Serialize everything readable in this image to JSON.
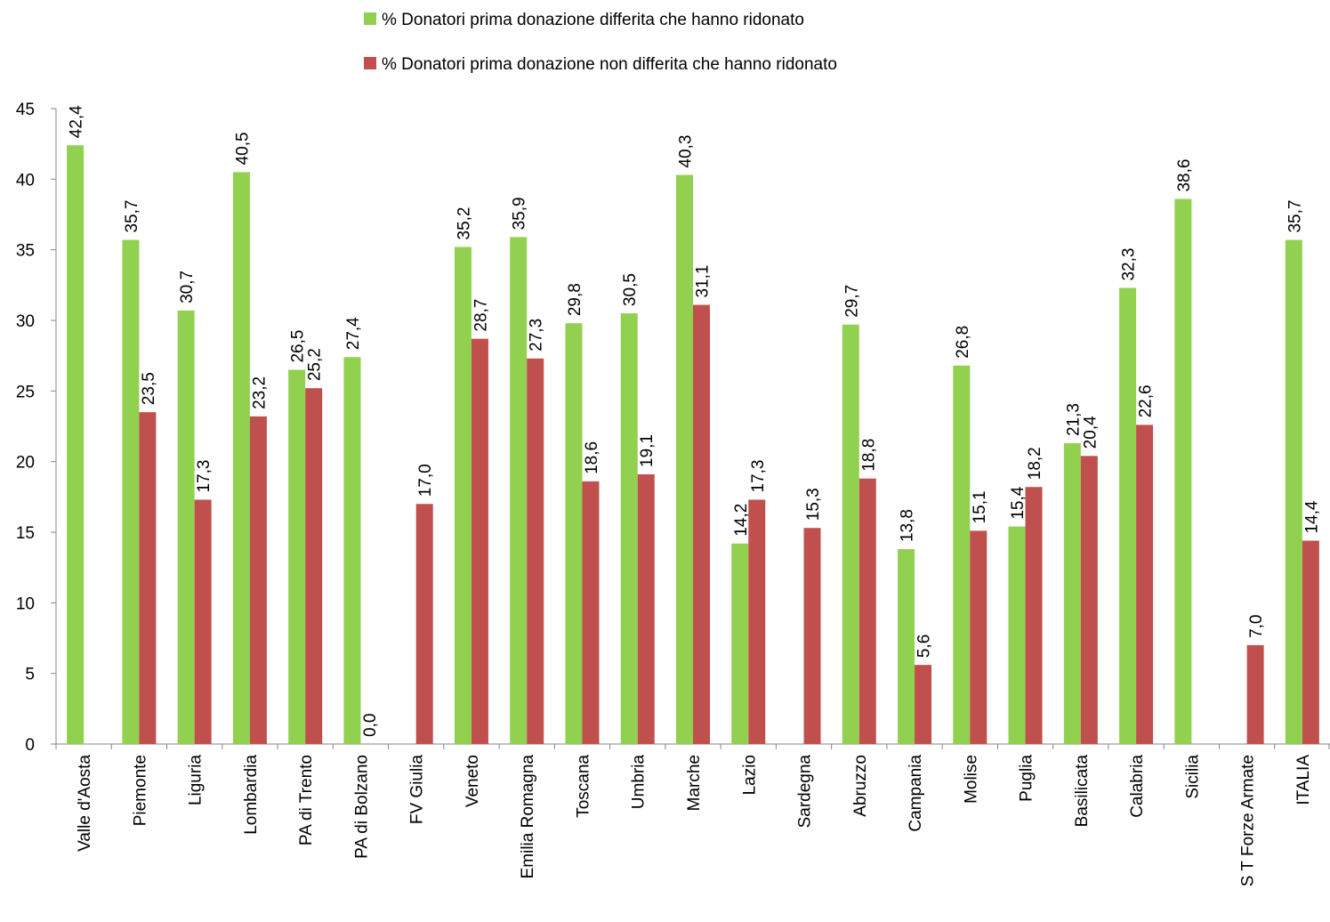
{
  "chart_data": {
    "type": "bar",
    "categories": [
      "Valle d'Aosta",
      "Piemonte",
      "Liguria",
      "Lombardia",
      "PA di Trento",
      "PA di Bolzano",
      "FV Giulia",
      "Veneto",
      "Emilia Romagna",
      "Toscana",
      "Umbria",
      "Marche",
      "Lazio",
      "Sardegna",
      "Abruzzo",
      "Campania",
      "Molise",
      "Puglia",
      "Basilicata",
      "Calabria",
      "Sicilia",
      "S T Forze Armate",
      "ITALIA"
    ],
    "series": [
      {
        "name": "% Donatori prima donazione differita che hanno ridonato",
        "color": "#92d050",
        "values": [
          42.4,
          35.7,
          30.7,
          40.5,
          26.5,
          27.4,
          null,
          35.2,
          35.9,
          29.8,
          30.5,
          40.3,
          14.2,
          null,
          29.7,
          13.8,
          26.8,
          15.4,
          21.3,
          32.3,
          38.6,
          null,
          35.7
        ],
        "value_labels": [
          "42,4",
          "35,7",
          "30,7",
          "40,5",
          "26,5",
          "27,4",
          null,
          "35,2",
          "35,9",
          "29,8",
          "30,5",
          "40,3",
          "14,2",
          null,
          "29,7",
          "13,8",
          "26,8",
          "15,4",
          "21,3",
          "32,3",
          "38,6",
          null,
          "35,7"
        ]
      },
      {
        "name": "% Donatori prima donazione non differita che hanno ridonato",
        "color": "#c0504d",
        "values": [
          null,
          23.5,
          17.3,
          23.2,
          25.2,
          0.0,
          17.0,
          28.7,
          27.3,
          18.6,
          19.1,
          31.1,
          17.3,
          15.3,
          18.8,
          5.6,
          15.1,
          18.2,
          20.4,
          22.6,
          null,
          7.0,
          14.4
        ],
        "value_labels": [
          null,
          "23,5",
          "17,3",
          "23,2",
          "25,2",
          "0,0",
          "17,0",
          "28,7",
          "27,3",
          "18,6",
          "19,1",
          "31,1",
          "17,3",
          "15,3",
          "18,8",
          "5,6",
          "15,1",
          "18,2",
          "20,4",
          "22,6",
          null,
          "7,0",
          "14,4"
        ]
      }
    ],
    "ylim": [
      0,
      45
    ],
    "yticks": [
      0,
      5,
      10,
      15,
      20,
      25,
      30,
      35,
      40,
      45
    ],
    "legend": "top"
  }
}
